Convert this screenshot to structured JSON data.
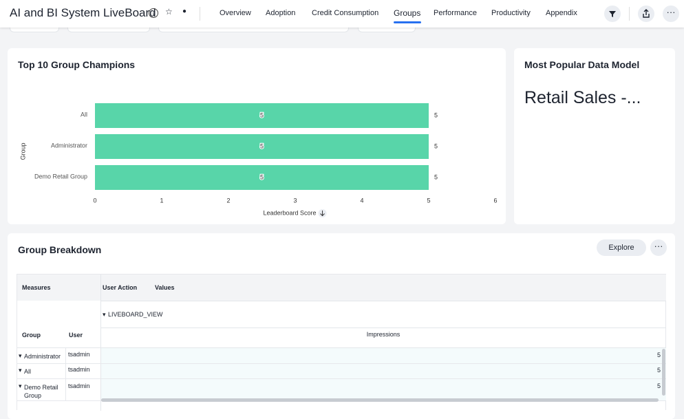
{
  "header": {
    "title": "AI and BI System LiveBoard",
    "tabs": [
      "Overview",
      "Adoption",
      "Credit Consumption",
      "Groups",
      "Performance",
      "Productivity",
      "Appendix"
    ]
  },
  "champions": {
    "type": "bar",
    "orientation": "horizontal",
    "title": "Top 10 Group Champions",
    "y_label": "Group",
    "x_label": "Leaderboard Score",
    "categories": [
      "All",
      "Administrator",
      "Demo Retail Group"
    ],
    "values": [
      5,
      5,
      5
    ],
    "color": "#58d5a9",
    "xlim": [
      0,
      6
    ],
    "xticks": [
      0,
      1,
      2,
      3,
      4,
      5,
      6
    ],
    "grid": false
  },
  "popular_model": {
    "title": "Most Popular Data Model",
    "value": "Retail Sales -..."
  },
  "breakdown": {
    "title": "Group Breakdown",
    "explore": "Explore",
    "measures_header": "Measures",
    "user_action_header": "User Action",
    "values_header": "Values",
    "action": "LIVEBOARD_VIEW",
    "group_header": "Group",
    "user_header": "User",
    "measure": "Impressions",
    "rows": [
      {
        "group": "Administrator",
        "user": "tsadmin",
        "impressions": 5
      },
      {
        "group": "All",
        "user": "tsadmin",
        "impressions": 5
      },
      {
        "group": "Demo Retail Group",
        "user": "tsadmin",
        "impressions": 5
      }
    ]
  }
}
